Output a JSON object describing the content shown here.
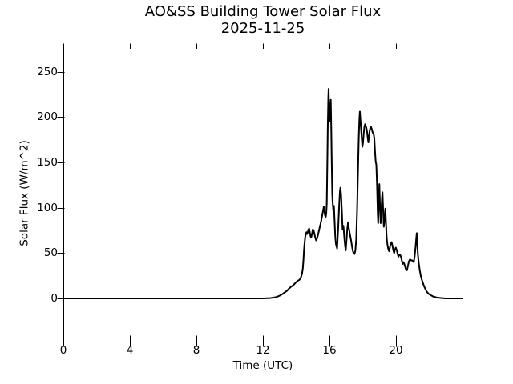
{
  "figure": {
    "background": "#ffffff",
    "ink_color": "#000000"
  },
  "chart_data": {
    "type": "line",
    "title": "AO&SS Building Tower Solar Flux",
    "subtitle": "2025-11-25",
    "xlabel": "Time (UTC)",
    "ylabel": "Solar Flux (W/m^2)",
    "xlim": [
      0,
      24
    ],
    "ylim": [
      -47.6,
      278.7
    ],
    "xticks": [
      0,
      4,
      8,
      12,
      16,
      20
    ],
    "yticks": [
      0,
      50,
      100,
      150,
      200,
      250
    ],
    "grid": false,
    "legend": null,
    "line_color": "#000000",
    "line_width": 2,
    "series": [
      {
        "name": "solar_flux_w_m2",
        "points": [
          [
            0,
            0
          ],
          [
            1,
            0
          ],
          [
            2,
            0
          ],
          [
            3,
            0
          ],
          [
            4,
            0
          ],
          [
            5,
            0
          ],
          [
            6,
            0
          ],
          [
            7,
            0
          ],
          [
            8,
            0
          ],
          [
            9,
            0
          ],
          [
            10,
            0
          ],
          [
            11,
            0
          ],
          [
            12,
            0
          ],
          [
            12.4,
            0.3
          ],
          [
            12.6,
            0.8
          ],
          [
            12.8,
            1.5
          ],
          [
            13.0,
            3
          ],
          [
            13.15,
            4.5
          ],
          [
            13.3,
            6.5
          ],
          [
            13.45,
            8.5
          ],
          [
            13.55,
            10.5
          ],
          [
            13.7,
            13
          ],
          [
            13.85,
            15
          ],
          [
            14.0,
            18
          ],
          [
            14.1,
            19.5
          ],
          [
            14.2,
            20.5
          ],
          [
            14.28,
            23
          ],
          [
            14.35,
            27
          ],
          [
            14.4,
            33
          ],
          [
            14.44,
            43
          ],
          [
            14.47,
            53
          ],
          [
            14.5,
            60
          ],
          [
            14.54,
            67
          ],
          [
            14.58,
            71
          ],
          [
            14.62,
            73
          ],
          [
            14.66,
            71
          ],
          [
            14.7,
            73
          ],
          [
            14.74,
            76
          ],
          [
            14.78,
            77
          ],
          [
            14.82,
            73
          ],
          [
            14.86,
            69
          ],
          [
            14.9,
            67
          ],
          [
            14.95,
            71
          ],
          [
            15.0,
            76
          ],
          [
            15.05,
            75
          ],
          [
            15.1,
            71
          ],
          [
            15.15,
            67
          ],
          [
            15.2,
            64
          ],
          [
            15.25,
            66
          ],
          [
            15.3,
            69
          ],
          [
            15.35,
            73
          ],
          [
            15.4,
            77
          ],
          [
            15.45,
            81
          ],
          [
            15.5,
            85
          ],
          [
            15.55,
            90
          ],
          [
            15.6,
            95
          ],
          [
            15.66,
            101
          ],
          [
            15.7,
            96
          ],
          [
            15.74,
            91
          ],
          [
            15.78,
            90
          ],
          [
            15.81,
            94
          ],
          [
            15.84,
            105
          ],
          [
            15.87,
            145
          ],
          [
            15.9,
            190
          ],
          [
            15.93,
            220
          ],
          [
            15.95,
            231
          ],
          [
            15.97,
            216
          ],
          [
            16.0,
            197
          ],
          [
            16.03,
            195
          ],
          [
            16.06,
            212
          ],
          [
            16.08,
            219
          ],
          [
            16.11,
            186
          ],
          [
            16.14,
            148
          ],
          [
            16.17,
            115
          ],
          [
            16.19,
            107
          ],
          [
            16.23,
            97
          ],
          [
            16.27,
            102
          ],
          [
            16.31,
            85
          ],
          [
            16.35,
            68
          ],
          [
            16.39,
            60
          ],
          [
            16.46,
            55
          ],
          [
            16.52,
            75
          ],
          [
            16.58,
            100
          ],
          [
            16.63,
            118
          ],
          [
            16.66,
            122
          ],
          [
            16.7,
            115
          ],
          [
            16.75,
            95
          ],
          [
            16.79,
            76
          ],
          [
            16.84,
            80
          ],
          [
            16.9,
            66
          ],
          [
            16.94,
            58
          ],
          [
            16.98,
            53
          ],
          [
            17.03,
            65
          ],
          [
            17.08,
            78
          ],
          [
            17.12,
            84
          ],
          [
            17.17,
            77
          ],
          [
            17.22,
            72
          ],
          [
            17.27,
            67
          ],
          [
            17.31,
            63
          ],
          [
            17.36,
            57
          ],
          [
            17.41,
            52
          ],
          [
            17.46,
            50
          ],
          [
            17.51,
            49
          ],
          [
            17.56,
            53
          ],
          [
            17.61,
            65
          ],
          [
            17.66,
            95
          ],
          [
            17.71,
            135
          ],
          [
            17.76,
            175
          ],
          [
            17.8,
            198
          ],
          [
            17.83,
            206
          ],
          [
            17.86,
            198
          ],
          [
            17.9,
            187
          ],
          [
            17.94,
            177
          ],
          [
            17.98,
            167
          ],
          [
            18.02,
            172
          ],
          [
            18.06,
            182
          ],
          [
            18.1,
            189
          ],
          [
            18.14,
            192
          ],
          [
            18.18,
            190
          ],
          [
            18.22,
            188
          ],
          [
            18.26,
            184
          ],
          [
            18.3,
            177
          ],
          [
            18.34,
            172
          ],
          [
            18.38,
            179
          ],
          [
            18.42,
            185
          ],
          [
            18.46,
            188
          ],
          [
            18.5,
            189
          ],
          [
            18.54,
            187
          ],
          [
            18.58,
            184
          ],
          [
            18.62,
            182
          ],
          [
            18.66,
            181
          ],
          [
            18.7,
            176
          ],
          [
            18.74,
            162
          ],
          [
            18.78,
            151
          ],
          [
            18.82,
            147
          ],
          [
            18.86,
            126
          ],
          [
            18.9,
            96
          ],
          [
            18.93,
            83
          ],
          [
            18.96,
            104
          ],
          [
            19.0,
            126
          ],
          [
            19.04,
            101
          ],
          [
            19.08,
            83
          ],
          [
            19.12,
            97
          ],
          [
            19.16,
            111
          ],
          [
            19.19,
            117
          ],
          [
            19.23,
            97
          ],
          [
            19.27,
            79
          ],
          [
            19.32,
            89
          ],
          [
            19.36,
            99
          ],
          [
            19.4,
            83
          ],
          [
            19.44,
            67
          ],
          [
            19.49,
            59
          ],
          [
            19.54,
            54
          ],
          [
            19.59,
            52
          ],
          [
            19.64,
            57
          ],
          [
            19.69,
            61
          ],
          [
            19.74,
            62
          ],
          [
            19.79,
            58
          ],
          [
            19.84,
            53
          ],
          [
            19.89,
            50
          ],
          [
            19.94,
            54
          ],
          [
            19.99,
            56
          ],
          [
            20.05,
            53
          ],
          [
            20.1,
            49
          ],
          [
            20.15,
            46
          ],
          [
            20.2,
            48
          ],
          [
            20.25,
            48
          ],
          [
            20.3,
            46
          ],
          [
            20.35,
            42
          ],
          [
            20.4,
            38
          ],
          [
            20.45,
            40
          ],
          [
            20.5,
            38
          ],
          [
            20.55,
            35
          ],
          [
            20.6,
            32
          ],
          [
            20.66,
            31
          ],
          [
            20.72,
            36
          ],
          [
            20.78,
            41
          ],
          [
            20.84,
            43
          ],
          [
            20.9,
            42
          ],
          [
            20.96,
            42
          ],
          [
            21.02,
            41
          ],
          [
            21.07,
            40
          ],
          [
            21.12,
            46
          ],
          [
            21.17,
            55
          ],
          [
            21.21,
            64
          ],
          [
            21.25,
            72
          ],
          [
            21.28,
            61
          ],
          [
            21.32,
            48
          ],
          [
            21.37,
            39
          ],
          [
            21.43,
            31
          ],
          [
            21.49,
            25
          ],
          [
            21.55,
            21
          ],
          [
            21.62,
            17
          ],
          [
            21.7,
            13
          ],
          [
            21.78,
            10
          ],
          [
            21.87,
            7
          ],
          [
            21.97,
            5
          ],
          [
            22.1,
            3.5
          ],
          [
            22.25,
            2
          ],
          [
            22.45,
            1
          ],
          [
            22.7,
            0.5
          ],
          [
            23.0,
            0
          ],
          [
            23.5,
            0
          ],
          [
            24,
            0
          ]
        ]
      }
    ]
  }
}
